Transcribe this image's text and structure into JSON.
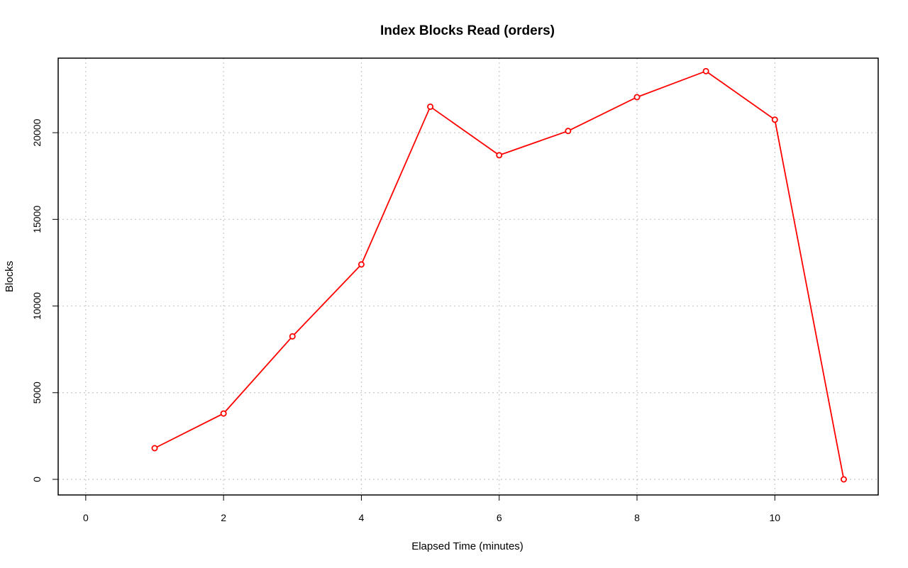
{
  "chart_data": {
    "type": "line",
    "title": "Index Blocks Read (orders)",
    "xlabel": "Elapsed Time (minutes)",
    "ylabel": "Blocks",
    "xlim": [
      -0.4,
      11.5
    ],
    "ylim": [
      -900,
      24300
    ],
    "x_ticks": [
      0,
      2,
      4,
      6,
      8,
      10
    ],
    "y_ticks": [
      0,
      5000,
      10000,
      15000,
      20000
    ],
    "grid": true,
    "legend": "none",
    "series": [
      {
        "color": "#ff0000",
        "points": [
          {
            "x": 1,
            "y": 1800
          },
          {
            "x": 2,
            "y": 3800
          },
          {
            "x": 3,
            "y": 8250
          },
          {
            "x": 4,
            "y": 12400
          },
          {
            "x": 5,
            "y": 21500
          },
          {
            "x": 6,
            "y": 18700
          },
          {
            "x": 7,
            "y": 20100
          },
          {
            "x": 8,
            "y": 22050
          },
          {
            "x": 9,
            "y": 23550
          },
          {
            "x": 10,
            "y": 20750
          },
          {
            "x": 11,
            "y": 0
          }
        ]
      }
    ]
  }
}
